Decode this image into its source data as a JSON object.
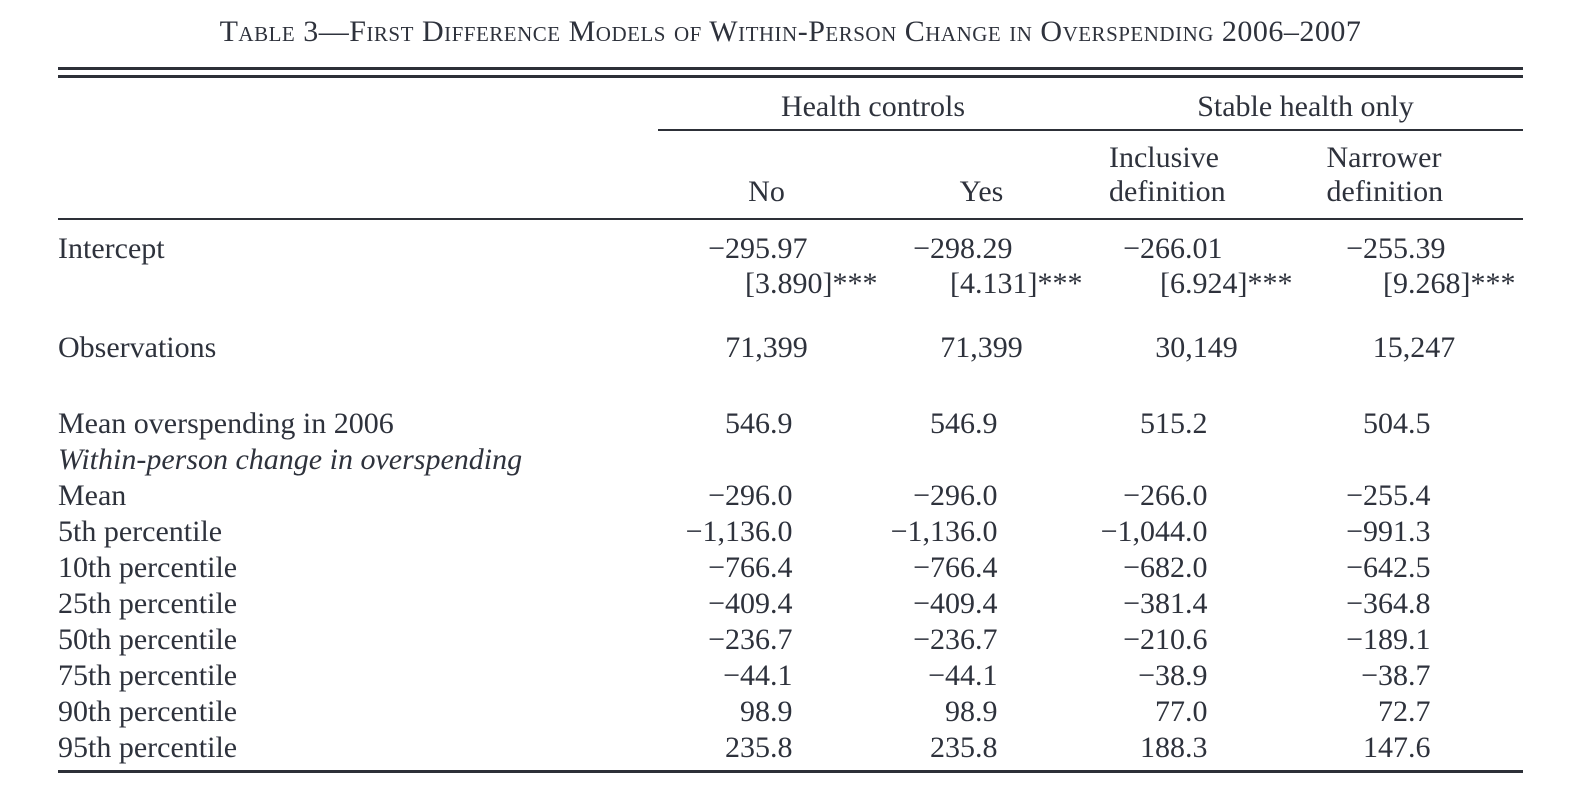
{
  "title": "Table 3—First Difference Models of Within-Person Change in Overspending 2006–2007",
  "colors": {
    "text": "#2e323c",
    "rule": "#2d3038",
    "background": "#ffffff"
  },
  "table": {
    "groups": [
      "Health controls",
      "Stable health only"
    ],
    "columns": [
      "No",
      "Yes",
      "Inclusive definition",
      "Narrower definition"
    ],
    "rows": [
      {
        "type": "data",
        "label": "Intercept",
        "pad_top": true,
        "align": "decimal",
        "values": [
          "−295.97",
          "−298.29",
          "−266.01",
          "−255.39"
        ]
      },
      {
        "type": "data",
        "label": "",
        "align": "decimal",
        "role": "standard-errors",
        "values": [
          "[3.890]***",
          "[4.131]***",
          "[6.924]***",
          "[9.268]***"
        ]
      },
      {
        "type": "spacer",
        "height": 28
      },
      {
        "type": "data",
        "label": "Observations",
        "align": "center",
        "values": [
          "71,399",
          "71,399",
          "30,149",
          "15,247"
        ]
      },
      {
        "type": "spacer",
        "height": 40
      },
      {
        "type": "data",
        "label": "Mean overspending in 2006",
        "align": "decimal",
        "values": [
          "546.9",
          "546.9",
          "515.2",
          "504.5"
        ]
      },
      {
        "type": "data",
        "label": "Within-person change in overspending",
        "italic": true,
        "align": "decimal",
        "values": [
          "",
          "",
          "",
          ""
        ]
      },
      {
        "type": "data",
        "label": "Mean",
        "align": "decimal",
        "values": [
          "−296.0",
          "−296.0",
          "−266.0",
          "−255.4"
        ]
      },
      {
        "type": "data",
        "label": "5th percentile",
        "align": "decimal",
        "values": [
          "−1,136.0",
          "−1,136.0",
          "−1,044.0",
          "−991.3"
        ]
      },
      {
        "type": "data",
        "label": "10th percentile",
        "align": "decimal",
        "values": [
          "−766.4",
          "−766.4",
          "−682.0",
          "−642.5"
        ]
      },
      {
        "type": "data",
        "label": "25th percentile",
        "align": "decimal",
        "values": [
          "−409.4",
          "−409.4",
          "−381.4",
          "−364.8"
        ]
      },
      {
        "type": "data",
        "label": "50th percentile",
        "align": "decimal",
        "values": [
          "−236.7",
          "−236.7",
          "−210.6",
          "−189.1"
        ]
      },
      {
        "type": "data",
        "label": "75th percentile",
        "align": "decimal",
        "values": [
          "−44.1",
          "−44.1",
          "−38.9",
          "−38.7"
        ]
      },
      {
        "type": "data",
        "label": "90th percentile",
        "align": "decimal",
        "values": [
          "98.9",
          "98.9",
          "77.0",
          "72.7"
        ]
      },
      {
        "type": "data",
        "label": "95th percentile",
        "align": "decimal",
        "values": [
          "235.8",
          "235.8",
          "188.3",
          "147.6"
        ]
      }
    ]
  }
}
